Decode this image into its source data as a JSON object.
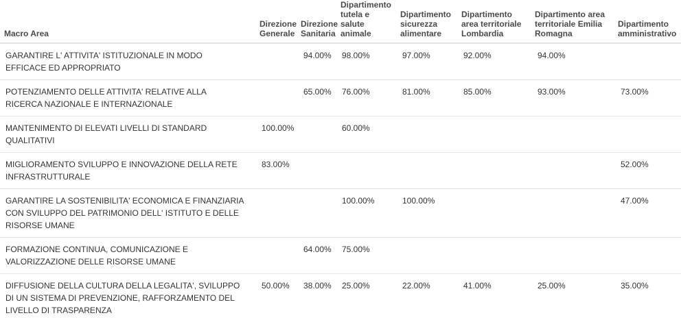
{
  "table": {
    "headers": [
      "Macro Area",
      "Direzione Generale",
      "Direzione Sanitaria",
      "Dipartimento tutela e salute animale",
      "Dipartimento sicurezza alimentare",
      "Dipartimento area territoriale Lombardia",
      "Dipartimento area territoriale Emilia Romagna",
      "Dipartimento amministrativo"
    ],
    "rows": [
      {
        "macro": "GARANTIRE L' ATTIVITA' ISTITUZIONALE IN MODO EFFICACE ED APPROPRIATO",
        "vals": [
          "",
          "94.00%",
          "98.00%",
          "97.00%",
          "92.00%",
          "94.00%",
          ""
        ]
      },
      {
        "macro": "POTENZIAMENTO DELLE ATTIVITA' RELATIVE ALLA RICERCA NAZIONALE E INTERNAZIONALE",
        "vals": [
          "",
          "65.00%",
          "76.00%",
          "81.00%",
          "85.00%",
          "93.00%",
          "73.00%"
        ]
      },
      {
        "macro": "MANTENIMENTO DI ELEVATI LIVELLI DI STANDARD QUALITATIVI",
        "vals": [
          "100.00%",
          "",
          "60.00%",
          "",
          "",
          "",
          ""
        ]
      },
      {
        "macro": "MIGLIORAMENTO SVILUPPO E INNOVAZIONE DELLA RETE INFRASTRUTTURALE",
        "vals": [
          "83.00%",
          "",
          "",
          "",
          "",
          "",
          "52.00%"
        ]
      },
      {
        "macro": "GARANTIRE LA SOSTENIBILITA' ECONOMICA E FINANZIARIA CON SVILUPPO DEL PATRIMONIO DELL' ISTITUTO E DELLE RISORSE UMANE",
        "vals": [
          "",
          "",
          "100.00%",
          "100.00%",
          "",
          "",
          "47.00%"
        ]
      },
      {
        "macro": "FORMAZIONE CONTINUA, COMUNICAZIONE E VALORIZZAZIONE DELLE RISORSE UMANE",
        "vals": [
          "",
          "64.00%",
          "75.00%",
          "",
          "",
          "",
          ""
        ]
      },
      {
        "macro": "DIFFUSIONE DELLA CULTURA DELLA LEGALITA', SVILUPPO DI UN SISTEMA DI PREVENZIONE, RAFFORZAMENTO DEL LIVELLO DI TRASPARENZA",
        "vals": [
          "50.00%",
          "38.00%",
          "25.00%",
          "22.00%",
          "41.00%",
          "25.00%",
          "35.00%"
        ]
      }
    ]
  }
}
